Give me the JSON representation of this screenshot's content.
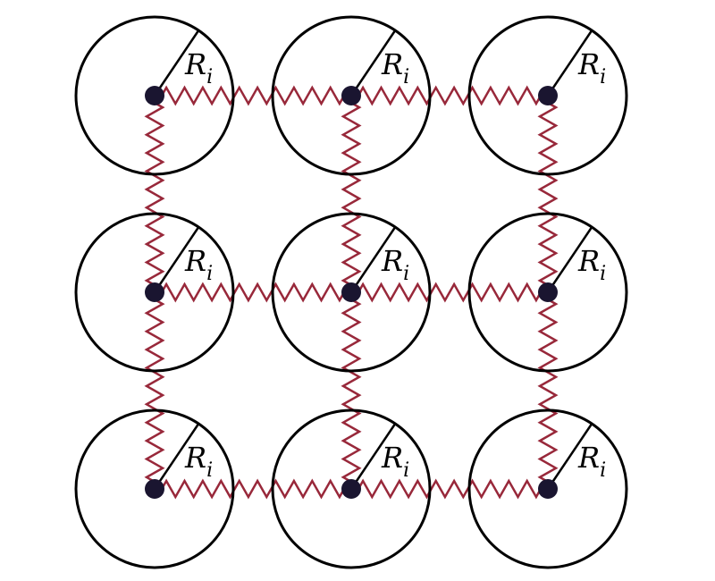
{
  "grid": {
    "rows": 3,
    "cols": 3
  },
  "particle": {
    "radius_label": "R",
    "radius_subscript": "i"
  },
  "colors": {
    "circle": "#000000",
    "spring": "#98283a",
    "node": "#1a1530"
  }
}
